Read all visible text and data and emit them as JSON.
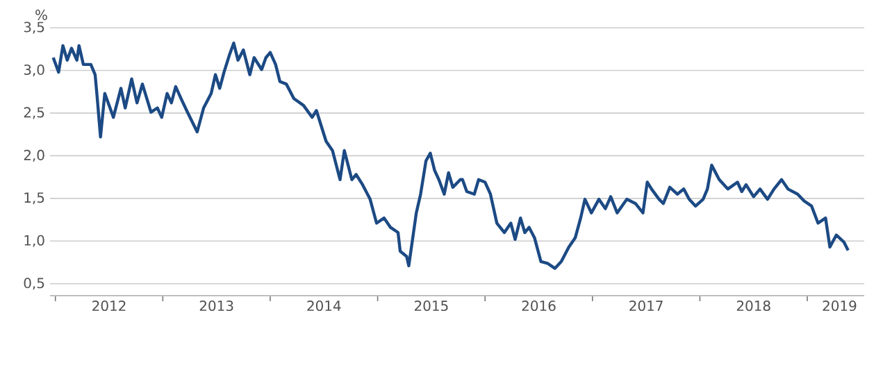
{
  "chart_data": {
    "type": "line",
    "ylabel": "%",
    "x": [
      2011.98,
      2012.03,
      2012.07,
      2012.11,
      2012.15,
      2012.2,
      2012.22,
      2012.26,
      2012.33,
      2012.37,
      2012.39,
      2012.42,
      2012.46,
      2012.5,
      2012.54,
      2012.61,
      2012.65,
      2012.71,
      2012.76,
      2012.81,
      2012.89,
      2012.95,
      2012.99,
      2013.04,
      2013.08,
      2013.12,
      2013.17,
      2013.23,
      2013.32,
      2013.38,
      2013.45,
      2013.49,
      2013.53,
      2013.57,
      2013.62,
      2013.66,
      2013.7,
      2013.75,
      2013.81,
      2013.85,
      2013.92,
      2013.96,
      2014.0,
      2014.05,
      2014.09,
      2014.15,
      2014.22,
      2014.31,
      2014.39,
      2014.43,
      2014.52,
      2014.58,
      2014.65,
      2014.69,
      2014.76,
      2014.8,
      2014.86,
      2014.93,
      2014.99,
      2015.06,
      2015.12,
      2015.19,
      2015.21,
      2015.27,
      2015.29,
      2015.36,
      2015.4,
      2015.45,
      2015.49,
      2015.53,
      2015.57,
      2015.62,
      2015.66,
      2015.7,
      2015.77,
      2015.79,
      2015.83,
      2015.9,
      2015.94,
      2016.0,
      2016.05,
      2016.11,
      2016.18,
      2016.24,
      2016.28,
      2016.33,
      2016.37,
      2016.41,
      2016.46,
      2016.52,
      2016.58,
      2016.65,
      2016.71,
      2016.78,
      2016.84,
      2016.89,
      2016.93,
      2016.99,
      2017.06,
      2017.12,
      2017.17,
      2017.23,
      2017.32,
      2017.4,
      2017.47,
      2017.51,
      2017.55,
      2017.62,
      2017.66,
      2017.72,
      2017.79,
      2017.85,
      2017.9,
      2017.96,
      2018.03,
      2018.07,
      2018.11,
      2018.18,
      2018.26,
      2018.35,
      2018.39,
      2018.43,
      2018.5,
      2018.56,
      2018.63,
      2018.69,
      2018.76,
      2018.82,
      2018.91,
      2018.97,
      2019.04,
      2019.1,
      2019.17,
      2019.21,
      2019.27,
      2019.34,
      2019.38
    ],
    "series": [
      {
        "color": "#1c4a84",
        "values": [
          3.15,
          2.98,
          3.29,
          3.12,
          3.26,
          3.12,
          3.29,
          3.07,
          3.07,
          2.95,
          2.67,
          2.22,
          2.73,
          2.59,
          2.45,
          2.79,
          2.56,
          2.9,
          2.62,
          2.84,
          2.51,
          2.56,
          2.45,
          2.73,
          2.62,
          2.81,
          2.67,
          2.51,
          2.28,
          2.56,
          2.73,
          2.95,
          2.79,
          2.98,
          3.18,
          3.32,
          3.12,
          3.24,
          2.95,
          3.15,
          3.01,
          3.15,
          3.21,
          3.07,
          2.87,
          2.84,
          2.67,
          2.59,
          2.45,
          2.53,
          2.17,
          2.06,
          1.72,
          2.06,
          1.72,
          1.78,
          1.66,
          1.49,
          1.21,
          1.27,
          1.16,
          1.1,
          0.88,
          0.82,
          0.71,
          1.33,
          1.55,
          1.94,
          2.03,
          1.83,
          1.72,
          1.55,
          1.8,
          1.63,
          1.72,
          1.72,
          1.58,
          1.55,
          1.72,
          1.69,
          1.55,
          1.21,
          1.1,
          1.21,
          1.02,
          1.27,
          1.1,
          1.16,
          1.04,
          0.76,
          0.74,
          0.68,
          0.76,
          0.93,
          1.04,
          1.27,
          1.49,
          1.33,
          1.49,
          1.38,
          1.52,
          1.33,
          1.49,
          1.44,
          1.33,
          1.69,
          1.61,
          1.49,
          1.44,
          1.63,
          1.55,
          1.61,
          1.49,
          1.41,
          1.49,
          1.61,
          1.89,
          1.72,
          1.61,
          1.69,
          1.58,
          1.66,
          1.52,
          1.61,
          1.49,
          1.61,
          1.72,
          1.61,
          1.55,
          1.47,
          1.41,
          1.21,
          1.27,
          0.93,
          1.07,
          0.99,
          0.89
        ]
      }
    ],
    "xlim": [
      2011.95,
      2019.53
    ],
    "xticks": [
      {
        "value": 2012,
        "label": null
      },
      {
        "value": 2012.5,
        "label": "2012"
      },
      {
        "value": 2013,
        "label": null
      },
      {
        "value": 2013.5,
        "label": "2013"
      },
      {
        "value": 2014,
        "label": null
      },
      {
        "value": 2014.5,
        "label": "2014"
      },
      {
        "value": 2015,
        "label": null
      },
      {
        "value": 2015.5,
        "label": "2015"
      },
      {
        "value": 2016,
        "label": null
      },
      {
        "value": 2016.5,
        "label": "2016"
      },
      {
        "value": 2017,
        "label": null
      },
      {
        "value": 2017.5,
        "label": "2017"
      },
      {
        "value": 2018,
        "label": null
      },
      {
        "value": 2018.5,
        "label": "2018"
      },
      {
        "value": 2019,
        "label": null
      },
      {
        "value": 2019.3,
        "label": "2019"
      }
    ],
    "ylim": [
      0.36,
      3.5
    ],
    "yticks": [
      {
        "value": 0.5,
        "label": "0,5"
      },
      {
        "value": 1.0,
        "label": "1,0"
      },
      {
        "value": 1.5,
        "label": "1,5"
      },
      {
        "value": 2.0,
        "label": "2,0"
      },
      {
        "value": 2.5,
        "label": "2,5"
      },
      {
        "value": 3.0,
        "label": "3,0"
      },
      {
        "value": 3.5,
        "label": "3,5"
      }
    ],
    "grid": "y",
    "marker": "none",
    "line_style": "solid"
  }
}
